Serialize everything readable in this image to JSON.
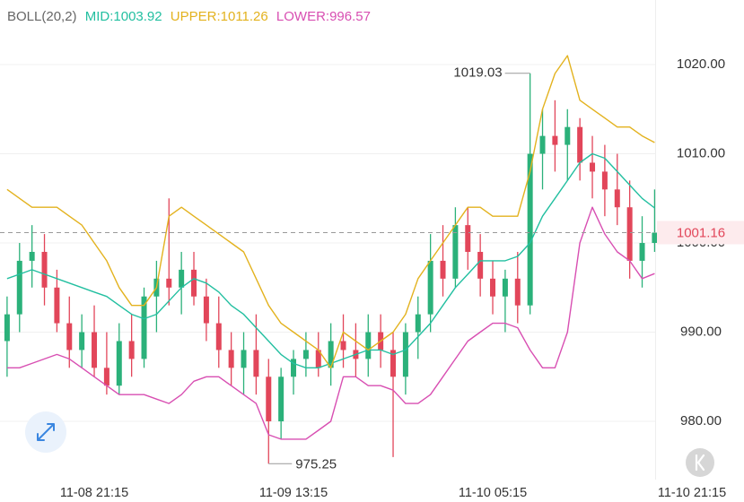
{
  "chart_data": {
    "type": "candlestick",
    "indicator": "BOLL(20,2)",
    "categories": [
      null,
      null,
      null,
      null,
      null,
      null,
      null,
      "11-08 21:15",
      null,
      null,
      null,
      null,
      null,
      null,
      null,
      null,
      null,
      null,
      null,
      null,
      null,
      null,
      null,
      "11-09 13:15",
      null,
      null,
      null,
      null,
      null,
      null,
      null,
      null,
      null,
      null,
      null,
      null,
      null,
      null,
      null,
      "11-10 05:15",
      null,
      null,
      null,
      null,
      null,
      null,
      null,
      null,
      null,
      null,
      null,
      null,
      null,
      null,
      null,
      "11-10 21:15"
    ],
    "open": [
      989,
      992,
      998,
      999,
      995,
      991,
      988,
      990,
      986,
      984,
      989,
      987,
      994,
      996,
      995,
      997,
      994,
      991,
      988,
      986,
      988,
      985,
      980,
      985,
      987,
      988,
      986,
      989,
      988,
      987,
      990,
      988,
      985,
      990,
      992,
      998,
      996,
      1002,
      999,
      996,
      994,
      996,
      993,
      1010,
      1012,
      1011,
      1013,
      1009,
      1008,
      1006,
      1004,
      998,
      1000,
      null,
      null,
      null
    ],
    "high": [
      994,
      1000,
      1002,
      1001,
      997,
      994,
      992,
      993,
      990,
      991,
      992,
      995,
      998,
      1005,
      999,
      999,
      996,
      994,
      990,
      990,
      992,
      987,
      986,
      988,
      990,
      990,
      991,
      992,
      991,
      992,
      992,
      990,
      991,
      994,
      1001,
      1002,
      1004,
      1004,
      1001,
      998,
      997,
      999,
      1019.03,
      1015,
      1016,
      1015,
      1014,
      1012,
      1011,
      1010,
      1007,
      1003,
      1006,
      null,
      null,
      null
    ],
    "low": [
      985,
      990,
      995,
      993,
      990,
      986,
      986,
      985,
      983,
      983,
      985,
      986,
      990,
      993,
      992,
      993,
      989,
      986,
      984,
      983,
      983,
      975.25,
      978,
      983,
      985,
      985,
      984,
      986,
      985,
      985,
      986,
      976,
      983,
      987,
      990,
      994,
      995,
      997,
      994,
      992,
      990,
      991,
      992,
      1006,
      1008,
      1007,
      1007,
      1005,
      1003,
      1002,
      996,
      995,
      999,
      null,
      null,
      null
    ],
    "close": [
      992,
      998,
      999,
      995,
      991,
      988,
      990,
      986,
      984,
      989,
      987,
      994,
      996,
      995,
      997,
      994,
      991,
      988,
      986,
      988,
      985,
      980,
      985,
      987,
      988,
      986,
      989,
      988,
      987,
      990,
      988,
      985,
      990,
      992,
      998,
      996,
      1002,
      999,
      996,
      994,
      996,
      993,
      1010,
      1012,
      1011,
      1013,
      1009,
      1008,
      1006,
      1004,
      998,
      1000,
      1001.16,
      null,
      null,
      null
    ],
    "up_color": "#2bb17a",
    "down_color": "#e2465a",
    "series": [
      {
        "name": "MID:1003.92",
        "color": "#22bfa0",
        "values": [
          996,
          996.5,
          997,
          996.5,
          996,
          995.5,
          995,
          994.5,
          994,
          993,
          992,
          991.5,
          992,
          993.5,
          995,
          996,
          995.5,
          994.5,
          993,
          992,
          990.5,
          989,
          987.5,
          986.5,
          986,
          986,
          986.5,
          987,
          987.5,
          988,
          988,
          987.5,
          988,
          989.5,
          991,
          993,
          995,
          996.5,
          998,
          998,
          998,
          998.5,
          1000,
          1003,
          1005,
          1007,
          1009,
          1010,
          1009.5,
          1008,
          1006.5,
          1005,
          1003.92,
          null,
          null,
          null
        ]
      },
      {
        "name": "UPPER:1011.26",
        "color": "#e3b21e",
        "values": [
          1006,
          1005,
          1004,
          1004,
          1004,
          1003,
          1002,
          1000,
          998,
          995,
          993,
          993,
          995,
          1003,
          1004,
          1003,
          1002,
          1001,
          1000,
          999,
          996,
          993,
          991,
          990,
          989,
          988,
          986,
          990,
          989,
          988,
          989,
          990,
          992,
          996,
          998,
          1000,
          1002,
          1004,
          1004,
          1003,
          1003,
          1003,
          1008,
          1015,
          1019,
          1021,
          1016,
          1015,
          1014,
          1013,
          1013,
          1012,
          1011.26,
          null,
          null,
          null
        ]
      },
      {
        "name": "LOWER:996.57",
        "color": "#d84fb2",
        "values": [
          986,
          986,
          986.5,
          987,
          987.5,
          987,
          986,
          985,
          984,
          983,
          983,
          983,
          982.5,
          982,
          983,
          984.5,
          985,
          985,
          984,
          983,
          982,
          978.5,
          978,
          978,
          978,
          979,
          980,
          985,
          985,
          984,
          984,
          983.5,
          982,
          982,
          983,
          985,
          987,
          989,
          990,
          991,
          991,
          990.5,
          988,
          986,
          986,
          990,
          1000,
          1004,
          1001,
          999,
          998,
          996,
          996.57,
          null,
          null,
          null
        ]
      }
    ],
    "ylim": [
      973.47,
      1027.24
    ],
    "yticks": [
      {
        "value": 980,
        "label": "980.00"
      },
      {
        "value": 990,
        "label": "990.00"
      },
      {
        "value": 1000,
        "label": "1000.00"
      },
      {
        "value": 1010,
        "label": "1010.00"
      },
      {
        "value": 1020,
        "label": "1020.00"
      }
    ],
    "grid": true
  }
}
